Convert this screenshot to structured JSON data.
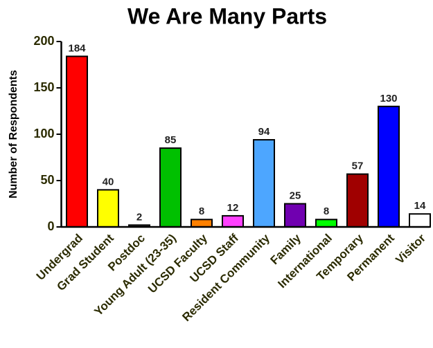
{
  "chart_data": {
    "type": "bar",
    "title": "We Are Many Parts",
    "y_label": "Number of Respondents",
    "categories": [
      "Undergrad",
      "Grad Student",
      "Postdoc",
      "Young Adult (23-35)",
      "UCSD Faculty",
      "UCSD Staff",
      "Resident Community",
      "Family",
      "International",
      "Temporary",
      "Permanent",
      "Visitor"
    ],
    "values": [
      184,
      40,
      2,
      85,
      8,
      12,
      94,
      25,
      8,
      57,
      130,
      14
    ],
    "colors": [
      "#ff0000",
      "#ffff00",
      "#555555",
      "#00c000",
      "#ff8000",
      "#ff40ff",
      "#4da6ff",
      "#7000b0",
      "#00ff00",
      "#a00000",
      "#0000ff",
      "#ffffff"
    ],
    "ylim": [
      0,
      200
    ],
    "yticks": [
      0,
      50,
      100,
      150,
      200
    ],
    "grid": false
  }
}
